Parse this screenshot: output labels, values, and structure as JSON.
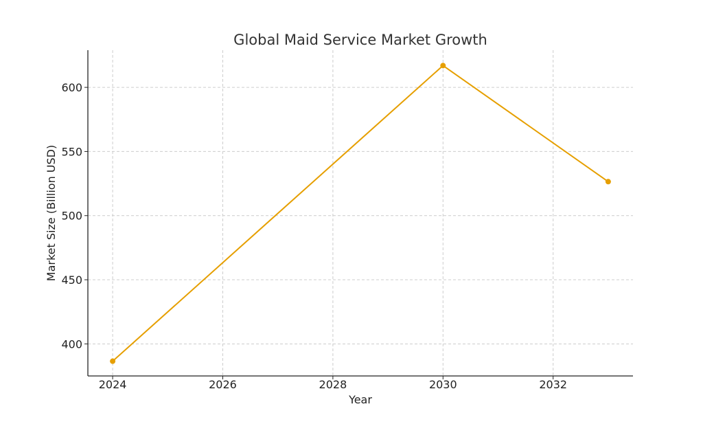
{
  "chart_data": {
    "type": "line",
    "title": "Global Maid Service Market Growth",
    "xlabel": "Year",
    "ylabel": "Market Size (Billion USD)",
    "x": [
      2024,
      2030,
      2033
    ],
    "series": [
      {
        "values": [
          386.5,
          617,
          526.5
        ],
        "color": "#E69F00"
      }
    ],
    "xlim": [
      2023.55,
      2033.45
    ],
    "ylim": [
      375,
      629
    ],
    "xticks": [
      2024,
      2026,
      2028,
      2030,
      2032
    ],
    "yticks": [
      400,
      450,
      500,
      550,
      600
    ],
    "grid": true,
    "grid_style": "dashed",
    "legend": false
  }
}
